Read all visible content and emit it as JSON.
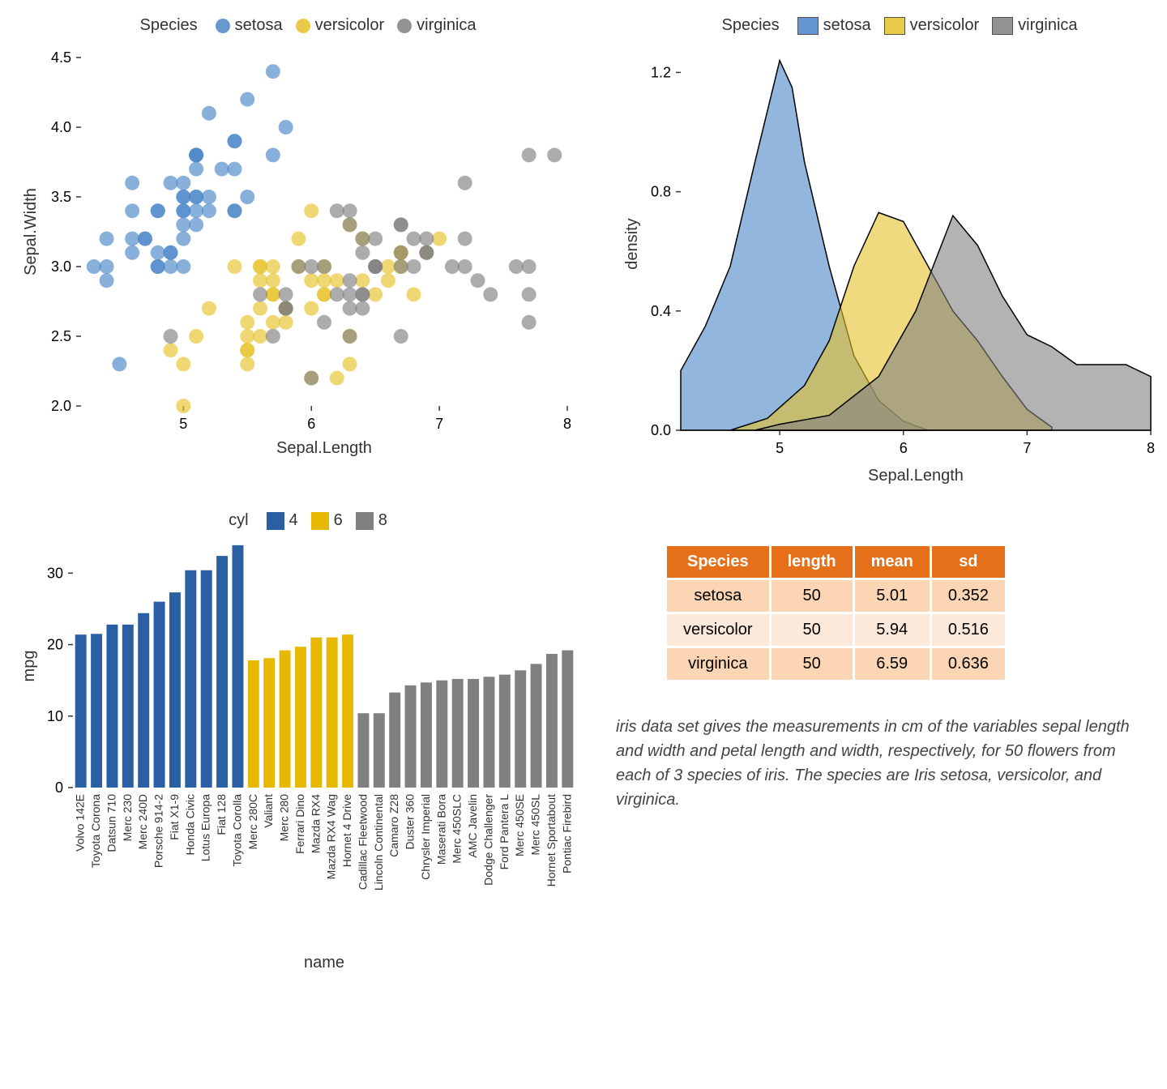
{
  "colors": {
    "setosa": "#4a86c7",
    "versicolor": "#e6c229",
    "virginica": "#808080",
    "cyl4": "#2b5fa3",
    "cyl6": "#e6b800",
    "cyl8": "#808080",
    "table_header_bg": "#e67019",
    "table_row_dark": "#fcd5b4",
    "table_row_light": "#fde9d9"
  },
  "scatter": {
    "legend_title": "Species",
    "legend_items": [
      {
        "label": "setosa",
        "color_key": "setosa"
      },
      {
        "label": "versicolor",
        "color_key": "versicolor"
      },
      {
        "label": "virginica",
        "color_key": "virginica"
      }
    ],
    "xlabel": "Sepal.Length",
    "ylabel": "Sepal.Width",
    "xlim": [
      4.2,
      8.0
    ],
    "ylim": [
      2.0,
      4.5
    ],
    "xticks": [
      5,
      6,
      7,
      8
    ],
    "yticks": [
      2.0,
      2.5,
      3.0,
      3.5,
      4.0,
      4.5
    ],
    "point_radius": 9,
    "label_fontsize": 20,
    "tick_fontsize": 18,
    "series": {
      "setosa": [
        [
          5.1,
          3.5
        ],
        [
          4.9,
          3.0
        ],
        [
          4.7,
          3.2
        ],
        [
          4.6,
          3.1
        ],
        [
          5.0,
          3.6
        ],
        [
          5.4,
          3.9
        ],
        [
          4.6,
          3.4
        ],
        [
          5.0,
          3.4
        ],
        [
          4.4,
          2.9
        ],
        [
          4.9,
          3.1
        ],
        [
          5.4,
          3.7
        ],
        [
          4.8,
          3.4
        ],
        [
          4.8,
          3.0
        ],
        [
          4.3,
          3.0
        ],
        [
          5.8,
          4.0
        ],
        [
          5.7,
          4.4
        ],
        [
          5.4,
          3.9
        ],
        [
          5.1,
          3.5
        ],
        [
          5.7,
          3.8
        ],
        [
          5.1,
          3.8
        ],
        [
          5.4,
          3.4
        ],
        [
          5.1,
          3.7
        ],
        [
          4.6,
          3.6
        ],
        [
          5.1,
          3.3
        ],
        [
          4.8,
          3.4
        ],
        [
          5.0,
          3.0
        ],
        [
          5.0,
          3.4
        ],
        [
          5.2,
          3.5
        ],
        [
          5.2,
          3.4
        ],
        [
          4.7,
          3.2
        ],
        [
          4.8,
          3.1
        ],
        [
          5.4,
          3.4
        ],
        [
          5.2,
          4.1
        ],
        [
          5.5,
          4.2
        ],
        [
          4.9,
          3.1
        ],
        [
          5.0,
          3.2
        ],
        [
          5.5,
          3.5
        ],
        [
          4.9,
          3.6
        ],
        [
          4.4,
          3.0
        ],
        [
          5.1,
          3.4
        ],
        [
          5.0,
          3.5
        ],
        [
          4.5,
          2.3
        ],
        [
          4.4,
          3.2
        ],
        [
          5.0,
          3.5
        ],
        [
          5.1,
          3.8
        ],
        [
          4.8,
          3.0
        ],
        [
          5.1,
          3.8
        ],
        [
          4.6,
          3.2
        ],
        [
          5.3,
          3.7
        ],
        [
          5.0,
          3.3
        ]
      ],
      "versicolor": [
        [
          7.0,
          3.2
        ],
        [
          6.4,
          3.2
        ],
        [
          6.9,
          3.1
        ],
        [
          5.5,
          2.3
        ],
        [
          6.5,
          2.8
        ],
        [
          5.7,
          2.8
        ],
        [
          6.3,
          3.3
        ],
        [
          4.9,
          2.4
        ],
        [
          6.6,
          2.9
        ],
        [
          5.2,
          2.7
        ],
        [
          5.0,
          2.0
        ],
        [
          5.9,
          3.0
        ],
        [
          6.0,
          2.2
        ],
        [
          6.1,
          2.9
        ],
        [
          5.6,
          2.9
        ],
        [
          6.7,
          3.1
        ],
        [
          5.6,
          3.0
        ],
        [
          5.8,
          2.7
        ],
        [
          6.2,
          2.2
        ],
        [
          5.6,
          2.5
        ],
        [
          5.9,
          3.2
        ],
        [
          6.1,
          2.8
        ],
        [
          6.3,
          2.5
        ],
        [
          6.1,
          2.8
        ],
        [
          6.4,
          2.9
        ],
        [
          6.6,
          3.0
        ],
        [
          6.8,
          2.8
        ],
        [
          6.7,
          3.0
        ],
        [
          6.0,
          2.9
        ],
        [
          5.7,
          2.6
        ],
        [
          5.5,
          2.4
        ],
        [
          5.5,
          2.4
        ],
        [
          5.8,
          2.7
        ],
        [
          6.0,
          2.7
        ],
        [
          5.4,
          3.0
        ],
        [
          6.0,
          3.4
        ],
        [
          6.7,
          3.1
        ],
        [
          6.3,
          2.3
        ],
        [
          5.6,
          3.0
        ],
        [
          5.5,
          2.5
        ],
        [
          5.5,
          2.6
        ],
        [
          6.1,
          3.0
        ],
        [
          5.8,
          2.6
        ],
        [
          5.0,
          2.3
        ],
        [
          5.6,
          2.7
        ],
        [
          5.7,
          3.0
        ],
        [
          5.7,
          2.9
        ],
        [
          6.2,
          2.9
        ],
        [
          5.1,
          2.5
        ],
        [
          5.7,
          2.8
        ]
      ],
      "virginica": [
        [
          6.3,
          3.3
        ],
        [
          5.8,
          2.7
        ],
        [
          7.1,
          3.0
        ],
        [
          6.3,
          2.9
        ],
        [
          6.5,
          3.0
        ],
        [
          7.6,
          3.0
        ],
        [
          4.9,
          2.5
        ],
        [
          7.3,
          2.9
        ],
        [
          6.7,
          2.5
        ],
        [
          7.2,
          3.6
        ],
        [
          6.5,
          3.2
        ],
        [
          6.4,
          2.7
        ],
        [
          6.8,
          3.0
        ],
        [
          5.7,
          2.5
        ],
        [
          5.8,
          2.8
        ],
        [
          6.4,
          3.2
        ],
        [
          6.5,
          3.0
        ],
        [
          7.7,
          3.8
        ],
        [
          7.7,
          2.6
        ],
        [
          6.0,
          2.2
        ],
        [
          6.9,
          3.2
        ],
        [
          5.6,
          2.8
        ],
        [
          7.7,
          2.8
        ],
        [
          6.3,
          2.7
        ],
        [
          6.7,
          3.3
        ],
        [
          7.2,
          3.2
        ],
        [
          6.2,
          2.8
        ],
        [
          6.1,
          3.0
        ],
        [
          6.4,
          2.8
        ],
        [
          7.2,
          3.0
        ],
        [
          7.4,
          2.8
        ],
        [
          7.9,
          3.8
        ],
        [
          6.4,
          2.8
        ],
        [
          6.3,
          2.8
        ],
        [
          6.1,
          2.6
        ],
        [
          7.7,
          3.0
        ],
        [
          6.3,
          3.4
        ],
        [
          6.4,
          3.1
        ],
        [
          6.0,
          3.0
        ],
        [
          6.9,
          3.1
        ],
        [
          6.7,
          3.1
        ],
        [
          6.9,
          3.1
        ],
        [
          5.8,
          2.7
        ],
        [
          6.8,
          3.2
        ],
        [
          6.7,
          3.3
        ],
        [
          6.7,
          3.0
        ],
        [
          6.3,
          2.5
        ],
        [
          6.5,
          3.0
        ],
        [
          6.2,
          3.4
        ],
        [
          5.9,
          3.0
        ]
      ]
    }
  },
  "density": {
    "legend_title": "Species",
    "legend_items": [
      {
        "label": "setosa",
        "color_key": "setosa"
      },
      {
        "label": "versicolor",
        "color_key": "versicolor"
      },
      {
        "label": "virginica",
        "color_key": "virginica"
      }
    ],
    "xlabel": "Sepal.Length",
    "ylabel": "density",
    "xlim": [
      4.2,
      8.0
    ],
    "ylim": [
      0.0,
      1.25
    ],
    "xticks": [
      5,
      6,
      7,
      8
    ],
    "yticks": [
      0.0,
      0.4,
      0.8,
      1.2
    ],
    "curves": {
      "setosa": [
        [
          4.2,
          0.2
        ],
        [
          4.4,
          0.35
        ],
        [
          4.6,
          0.55
        ],
        [
          4.8,
          0.9
        ],
        [
          5.0,
          1.24
        ],
        [
          5.1,
          1.15
        ],
        [
          5.2,
          0.9
        ],
        [
          5.4,
          0.55
        ],
        [
          5.6,
          0.25
        ],
        [
          5.8,
          0.1
        ],
        [
          6.0,
          0.03
        ],
        [
          6.2,
          0.0
        ]
      ],
      "versicolor": [
        [
          4.6,
          0.0
        ],
        [
          4.9,
          0.04
        ],
        [
          5.2,
          0.15
        ],
        [
          5.4,
          0.3
        ],
        [
          5.6,
          0.55
        ],
        [
          5.8,
          0.73
        ],
        [
          6.0,
          0.7
        ],
        [
          6.2,
          0.55
        ],
        [
          6.4,
          0.4
        ],
        [
          6.6,
          0.3
        ],
        [
          6.8,
          0.18
        ],
        [
          7.0,
          0.07
        ],
        [
          7.2,
          0.01
        ]
      ],
      "virginica": [
        [
          4.8,
          0.0
        ],
        [
          5.0,
          0.02
        ],
        [
          5.4,
          0.05
        ],
        [
          5.8,
          0.18
        ],
        [
          6.1,
          0.4
        ],
        [
          6.4,
          0.72
        ],
        [
          6.6,
          0.62
        ],
        [
          6.8,
          0.45
        ],
        [
          7.0,
          0.32
        ],
        [
          7.2,
          0.28
        ],
        [
          7.4,
          0.22
        ],
        [
          7.6,
          0.22
        ],
        [
          7.8,
          0.22
        ],
        [
          8.0,
          0.18
        ]
      ]
    }
  },
  "bars": {
    "legend_title": "cyl",
    "legend_items": [
      {
        "label": "4",
        "color_key": "cyl4"
      },
      {
        "label": "6",
        "color_key": "cyl6"
      },
      {
        "label": "8",
        "color_key": "cyl8"
      }
    ],
    "xlabel": "name",
    "ylabel": "mpg",
    "ylim": [
      0,
      34
    ],
    "yticks": [
      0,
      10,
      20,
      30
    ],
    "bar_width": 0.72,
    "data": [
      {
        "name": "Volvo 142E",
        "mpg": 21.4,
        "cyl": "cyl4"
      },
      {
        "name": "Toyota Corona",
        "mpg": 21.5,
        "cyl": "cyl4"
      },
      {
        "name": "Datsun 710",
        "mpg": 22.8,
        "cyl": "cyl4"
      },
      {
        "name": "Merc 230",
        "mpg": 22.8,
        "cyl": "cyl4"
      },
      {
        "name": "Merc 240D",
        "mpg": 24.4,
        "cyl": "cyl4"
      },
      {
        "name": "Porsche 914-2",
        "mpg": 26.0,
        "cyl": "cyl4"
      },
      {
        "name": "Fiat X1-9",
        "mpg": 27.3,
        "cyl": "cyl4"
      },
      {
        "name": "Honda Civic",
        "mpg": 30.4,
        "cyl": "cyl4"
      },
      {
        "name": "Lotus Europa",
        "mpg": 30.4,
        "cyl": "cyl4"
      },
      {
        "name": "Fiat 128",
        "mpg": 32.4,
        "cyl": "cyl4"
      },
      {
        "name": "Toyota Corolla",
        "mpg": 33.9,
        "cyl": "cyl4"
      },
      {
        "name": "Merc 280C",
        "mpg": 17.8,
        "cyl": "cyl6"
      },
      {
        "name": "Valiant",
        "mpg": 18.1,
        "cyl": "cyl6"
      },
      {
        "name": "Merc 280",
        "mpg": 19.2,
        "cyl": "cyl6"
      },
      {
        "name": "Ferrari Dino",
        "mpg": 19.7,
        "cyl": "cyl6"
      },
      {
        "name": "Mazda RX4",
        "mpg": 21.0,
        "cyl": "cyl6"
      },
      {
        "name": "Mazda RX4 Wag",
        "mpg": 21.0,
        "cyl": "cyl6"
      },
      {
        "name": "Hornet 4 Drive",
        "mpg": 21.4,
        "cyl": "cyl6"
      },
      {
        "name": "Cadillac Fleetwood",
        "mpg": 10.4,
        "cyl": "cyl8"
      },
      {
        "name": "Lincoln Continental",
        "mpg": 10.4,
        "cyl": "cyl8"
      },
      {
        "name": "Camaro Z28",
        "mpg": 13.3,
        "cyl": "cyl8"
      },
      {
        "name": "Duster 360",
        "mpg": 14.3,
        "cyl": "cyl8"
      },
      {
        "name": "Chrysler Imperial",
        "mpg": 14.7,
        "cyl": "cyl8"
      },
      {
        "name": "Maserati Bora",
        "mpg": 15.0,
        "cyl": "cyl8"
      },
      {
        "name": "Merc 450SLC",
        "mpg": 15.2,
        "cyl": "cyl8"
      },
      {
        "name": "AMC Javelin",
        "mpg": 15.2,
        "cyl": "cyl8"
      },
      {
        "name": "Dodge Challenger",
        "mpg": 15.5,
        "cyl": "cyl8"
      },
      {
        "name": "Ford Pantera L",
        "mpg": 15.8,
        "cyl": "cyl8"
      },
      {
        "name": "Merc 450SE",
        "mpg": 16.4,
        "cyl": "cyl8"
      },
      {
        "name": "Merc 450SL",
        "mpg": 17.3,
        "cyl": "cyl8"
      },
      {
        "name": "Hornet Sportabout",
        "mpg": 18.7,
        "cyl": "cyl8"
      },
      {
        "name": "Pontiac Firebird",
        "mpg": 19.2,
        "cyl": "cyl8"
      }
    ]
  },
  "table": {
    "columns": [
      "Species",
      "length",
      "mean",
      "sd"
    ],
    "rows": [
      [
        "setosa",
        "50",
        "5.01",
        "0.352"
      ],
      [
        "versicolor",
        "50",
        "5.94",
        "0.516"
      ],
      [
        "virginica",
        "50",
        "6.59",
        "0.636"
      ]
    ]
  },
  "caption": "iris data set gives the measurements in cm of the variables sepal length and width and petal length and width, respectively, for 50 flowers from each of 3 species of iris. The species are Iris setosa, versicolor, and virginica."
}
